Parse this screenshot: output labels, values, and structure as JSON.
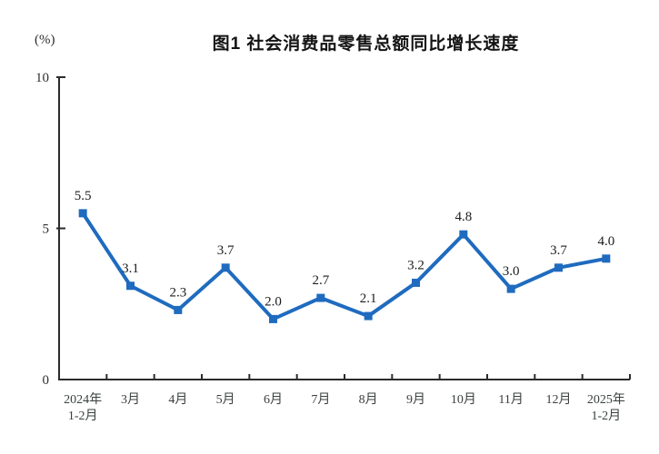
{
  "chart_data": {
    "type": "line",
    "title": "图1 社会消费品零售总额同比增长速度",
    "unit_label": "(%)",
    "categories": [
      [
        "2024年",
        "1-2月"
      ],
      [
        "3月"
      ],
      [
        "4月"
      ],
      [
        "5月"
      ],
      [
        "6月"
      ],
      [
        "7月"
      ],
      [
        "8月"
      ],
      [
        "9月"
      ],
      [
        "10月"
      ],
      [
        "11月"
      ],
      [
        "12月"
      ],
      [
        "2025年",
        "1-2月"
      ]
    ],
    "values": [
      5.5,
      3.1,
      2.3,
      3.7,
      2.0,
      2.7,
      2.1,
      3.2,
      4.8,
      3.0,
      3.7,
      4.0
    ],
    "ylim": [
      0,
      10
    ],
    "yticks": [
      0,
      5,
      10
    ],
    "grid": false,
    "legend": "none",
    "line_color": "#1f6bbf",
    "marker": "square",
    "axis_color": "#2b2b2b",
    "label_color": "#1c1c1c"
  }
}
